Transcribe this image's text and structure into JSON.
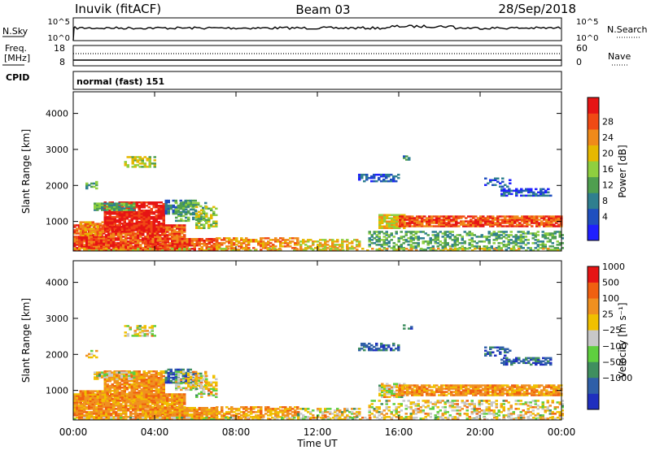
{
  "header": {
    "station": "Inuvik (fitACF)",
    "beam": "Beam 03",
    "date": "28/Sep/2018"
  },
  "top_panels": {
    "nsky_label": "N.Sky",
    "nsky_ticks": [
      "10^5",
      "10^0"
    ],
    "nsearch_label": "N.Search",
    "nsearch_ticks": [
      "10^5",
      "10^0"
    ],
    "freq_label": "Freq.",
    "freq_unit": "[MHz]",
    "freq_ticks": [
      "18",
      "8"
    ],
    "nave_label": "Nave",
    "nave_ticks": [
      "60",
      "0"
    ],
    "cpid_label": "CPID",
    "cpid_text": "normal (fast) 151"
  },
  "chart_data": [
    {
      "type": "heatmap",
      "panel": "power",
      "ylabel": "Slant Range [km]",
      "xlabel": "",
      "xlim": [
        "00:00",
        "24:00"
      ],
      "ylim": [
        180,
        4600
      ],
      "yticks": [
        1000,
        2000,
        3000,
        4000
      ],
      "colorbar": {
        "label": "Power [dB]",
        "ticks": [
          "4",
          "8",
          "12",
          "16",
          "20",
          "24",
          "28"
        ],
        "colors": [
          "#1f1fff",
          "#1f4fbf",
          "#2f7f8f",
          "#4f9f4f",
          "#8fcf3f",
          "#e6b800",
          "#f08a1a",
          "#f04a14",
          "#e61414"
        ]
      }
    },
    {
      "type": "heatmap",
      "panel": "velocity",
      "ylabel": "Slant Range [km]",
      "xlabel": "Time UT",
      "xlim": [
        "00:00",
        "24:00"
      ],
      "ylim": [
        180,
        4600
      ],
      "yticks": [
        1000,
        2000,
        3000,
        4000
      ],
      "xticks": [
        "00:00",
        "04:00",
        "08:00",
        "12:00",
        "16:00",
        "20:00",
        "00:00"
      ],
      "colorbar": {
        "label": "Velocity [m s⁻¹]",
        "ticks": [
          "1000",
          "500",
          "100",
          "25",
          "−25",
          "−100",
          "−500",
          "−1000"
        ],
        "colors": [
          "#1f2fbf",
          "#2f5fa8",
          "#3f8f5f",
          "#5fcf3f",
          "#c8c8c8",
          "#f0c000",
          "#f09020",
          "#f06010",
          "#e61414"
        ]
      }
    }
  ]
}
